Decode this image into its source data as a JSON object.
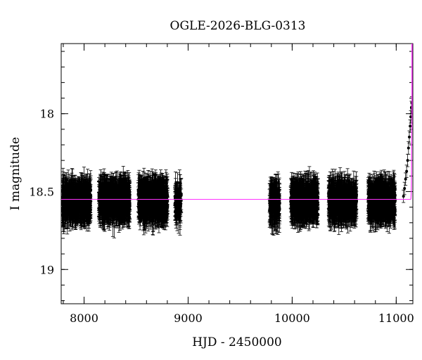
{
  "chart_data": {
    "type": "scatter",
    "title": "OGLE-2026-BLG-0313",
    "xlabel": "HJD - 2450000",
    "ylabel": "I magnitude",
    "xlim": [
      7780,
      11160
    ],
    "ylim": [
      19.22,
      17.55
    ],
    "y_inverted": true,
    "x_ticks": [
      {
        "value": 8000,
        "label": "8000"
      },
      {
        "value": 9000,
        "label": "9000"
      },
      {
        "value": 10000,
        "label": "10000"
      },
      {
        "value": 11000,
        "label": "11000"
      }
    ],
    "y_ticks": [
      {
        "value": 18,
        "label": "18"
      },
      {
        "value": 18.5,
        "label": "18.5"
      },
      {
        "value": 19,
        "label": "19"
      }
    ],
    "x_minor_step": 200,
    "y_minor_step": 0.1,
    "baseline_magnitude": 18.55,
    "seasons": [
      {
        "x_start": 7790,
        "x_end": 8065,
        "mag_center": 18.56,
        "mag_spread": 0.09,
        "points": 650
      },
      {
        "x_start": 8140,
        "x_end": 8440,
        "mag_center": 18.56,
        "mag_spread": 0.09,
        "points": 700
      },
      {
        "x_start": 8520,
        "x_end": 8805,
        "mag_center": 18.56,
        "mag_spread": 0.09,
        "points": 700
      },
      {
        "x_start": 8870,
        "x_end": 8935,
        "mag_center": 18.57,
        "mag_spread": 0.09,
        "points": 90
      },
      {
        "x_start": 9780,
        "x_end": 9880,
        "mag_center": 18.58,
        "mag_spread": 0.1,
        "points": 160
      },
      {
        "x_start": 9985,
        "x_end": 10250,
        "mag_center": 18.56,
        "mag_spread": 0.09,
        "points": 560
      },
      {
        "x_start": 10350,
        "x_end": 10620,
        "mag_center": 18.56,
        "mag_spread": 0.09,
        "points": 560
      },
      {
        "x_start": 10730,
        "x_end": 10990,
        "mag_center": 18.56,
        "mag_spread": 0.09,
        "points": 560
      }
    ],
    "rising_points": [
      {
        "x": 11070,
        "y": 18.53
      },
      {
        "x": 11080,
        "y": 18.48
      },
      {
        "x": 11090,
        "y": 18.42
      },
      {
        "x": 11100,
        "y": 18.37
      },
      {
        "x": 11110,
        "y": 18.3
      },
      {
        "x": 11118,
        "y": 18.22
      },
      {
        "x": 11126,
        "y": 18.15
      },
      {
        "x": 11134,
        "y": 18.08
      },
      {
        "x": 11140,
        "y": 18.02
      },
      {
        "x": 11146,
        "y": 17.96
      },
      {
        "x": 11150,
        "y": 17.93
      }
    ],
    "colors": {
      "points": "#000000",
      "model": "#ff33ff",
      "axes": "#000000"
    }
  }
}
